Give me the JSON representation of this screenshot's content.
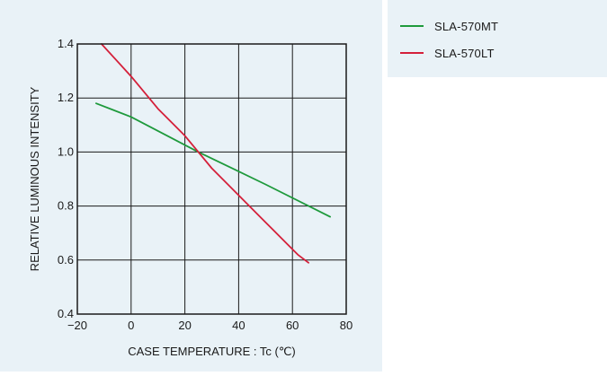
{
  "chart_data": {
    "type": "line",
    "xlabel": "CASE  TEMPERATURE : Tc (℃)",
    "ylabel": "RELATIVE  LUMINOUS  INTENSITY",
    "xlim": [
      -20,
      80
    ],
    "ylim": [
      0.4,
      1.4
    ],
    "x_ticks": [
      -20,
      0,
      20,
      40,
      60,
      80
    ],
    "x_tick_labels": [
      "−20",
      "0",
      "20",
      "40",
      "60",
      "80"
    ],
    "y_ticks": [
      0.4,
      0.6,
      0.8,
      1.0,
      1.2,
      1.4
    ],
    "y_tick_labels": [
      "0.4",
      "0.6",
      "0.8",
      "1.0",
      "1.2",
      "1.4"
    ],
    "grid": true,
    "legend_position": "top-right, outside plot",
    "series": [
      {
        "name": "SLA-570MT",
        "color": "#1e9a3c",
        "points": [
          [
            -13,
            1.18
          ],
          [
            0,
            1.13
          ],
          [
            25,
            1.0
          ],
          [
            50,
            0.88
          ],
          [
            74,
            0.76
          ]
        ]
      },
      {
        "name": "SLA-570LT",
        "color": "#d4203a",
        "points": [
          [
            -11,
            1.4
          ],
          [
            0,
            1.28
          ],
          [
            10,
            1.16
          ],
          [
            20,
            1.06
          ],
          [
            25,
            1.0
          ],
          [
            30,
            0.94
          ],
          [
            40,
            0.84
          ],
          [
            50,
            0.74
          ],
          [
            58,
            0.66
          ],
          [
            62,
            0.62
          ],
          [
            66,
            0.59
          ]
        ]
      }
    ]
  }
}
